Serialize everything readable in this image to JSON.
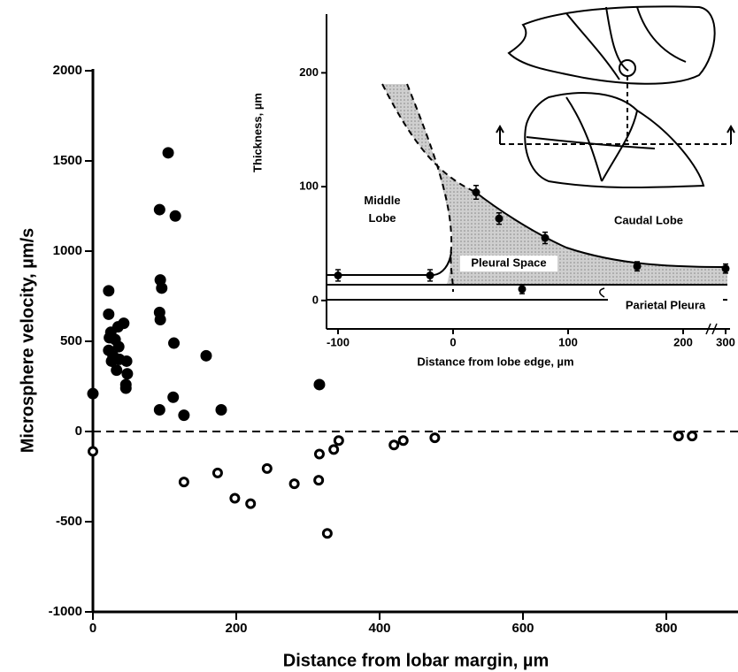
{
  "chart_data": [
    {
      "type": "scatter",
      "xlabel": "Distance from lobar margin, µm",
      "ylabel": "Microsphere velocity, µm/s",
      "xlim": [
        0,
        900
      ],
      "xticks": [
        0,
        200,
        400,
        600,
        800
      ],
      "ylim": [
        -1000,
        2000
      ],
      "yticks": [
        -1000,
        -500,
        0,
        500,
        1000,
        1500,
        2000
      ],
      "hline": 0,
      "series": [
        {
          "marker": "filled",
          "color": "#000000",
          "x": [
            0,
            22,
            22,
            25,
            35,
            43,
            31,
            23,
            22,
            28,
            26,
            37,
            33,
            47,
            48,
            46,
            46,
            36,
            93,
            105,
            115,
            94,
            96,
            93,
            94,
            113,
            158,
            93,
            112,
            127,
            179,
            316
          ],
          "values": [
            210,
            780,
            650,
            550,
            580,
            600,
            510,
            520,
            450,
            420,
            390,
            400,
            340,
            390,
            320,
            260,
            240,
            470,
            1230,
            1545,
            1195,
            840,
            795,
            660,
            620,
            490,
            420,
            120,
            190,
            90,
            120,
            260
          ]
        },
        {
          "marker": "open",
          "color": "#000000",
          "x": [
            0,
            127,
            174,
            198,
            220,
            243,
            281,
            315,
            316,
            327,
            336,
            343,
            420,
            433,
            477,
            817,
            836
          ],
          "values": [
            -110,
            -280,
            -230,
            -370,
            -400,
            -205,
            -290,
            -270,
            -125,
            -565,
            -100,
            -50,
            -75,
            -50,
            -35,
            -25,
            -25
          ]
        }
      ]
    },
    {
      "type": "errorbar",
      "xlabel": "Distance from lobe edge, µm",
      "ylabel": "Thickness, µm",
      "xlim": [
        -110,
        305
      ],
      "xbreak": [
        220,
        290
      ],
      "xticks": [
        -100,
        0,
        100,
        200,
        300
      ],
      "ylim": [
        -25,
        250
      ],
      "yticks": [
        0,
        100,
        200
      ],
      "color": "#000000",
      "x": [
        -100,
        -20,
        20,
        40,
        80,
        160,
        300,
        60
      ],
      "values": [
        22,
        22,
        95,
        72,
        55,
        30,
        28,
        10
      ],
      "errors": [
        5,
        5,
        6,
        5,
        5,
        4,
        4,
        4
      ],
      "annotations": [
        "Middle Lobe",
        "Caudal Lobe",
        "Pleural Space",
        "Parietal Pleura"
      ]
    }
  ]
}
